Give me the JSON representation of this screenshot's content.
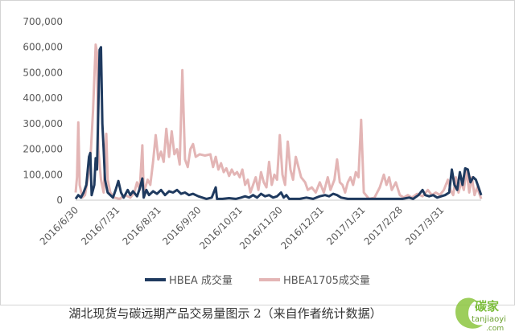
{
  "caption": "湖北现货与碳远期产品交易量图示 2（来自作者统计数据）",
  "watermark": {
    "text": "碳家",
    "domain": "tanjiaoyi",
    "tld": ".com"
  },
  "colors": {
    "hbea": "#1f3a5f",
    "hbea1705": "#e3b5b5",
    "axis": "#c8c8c8",
    "text": "#595959"
  },
  "chart_data": {
    "type": "line",
    "ylim": [
      0,
      700000
    ],
    "yticks": [
      "0",
      "100,000",
      "200,000",
      "300,000",
      "400,000",
      "500,000",
      "600,000",
      "700,000"
    ],
    "x_range": [
      "2016-06-30",
      "2017-04-30"
    ],
    "xticks": [
      "2016/6/30",
      "2016/7/31",
      "2016/8/31",
      "2016/9/30",
      "2016/10/31",
      "2016/11/30",
      "2016/12/31",
      "2017/1/31",
      "2017/2/28",
      "2017/3/31"
    ],
    "legend_position": "bottom",
    "grid": false,
    "series": [
      {
        "name": "HBEA 成交量",
        "color": "#1f3a5f",
        "points": [
          [
            "2016-06-30",
            5000
          ],
          [
            "2016-07-02",
            20000
          ],
          [
            "2016-07-04",
            10000
          ],
          [
            "2016-07-06",
            30000
          ],
          [
            "2016-07-08",
            60000
          ],
          [
            "2016-07-10",
            170000
          ],
          [
            "2016-07-11",
            185000
          ],
          [
            "2016-07-12",
            20000
          ],
          [
            "2016-07-14",
            60000
          ],
          [
            "2016-07-15",
            165000
          ],
          [
            "2016-07-16",
            120000
          ],
          [
            "2016-07-18",
            590000
          ],
          [
            "2016-07-19",
            600000
          ],
          [
            "2016-07-20",
            300000
          ],
          [
            "2016-07-21",
            200000
          ],
          [
            "2016-07-22",
            80000
          ],
          [
            "2016-07-24",
            30000
          ],
          [
            "2016-07-26",
            20000
          ],
          [
            "2016-07-28",
            10000
          ],
          [
            "2016-07-30",
            40000
          ],
          [
            "2016-08-01",
            75000
          ],
          [
            "2016-08-03",
            30000
          ],
          [
            "2016-08-05",
            10000
          ],
          [
            "2016-08-08",
            40000
          ],
          [
            "2016-08-10",
            20000
          ],
          [
            "2016-08-12",
            35000
          ],
          [
            "2016-08-15",
            15000
          ],
          [
            "2016-08-17",
            45000
          ],
          [
            "2016-08-19",
            85000
          ],
          [
            "2016-08-20",
            10000
          ],
          [
            "2016-08-22",
            40000
          ],
          [
            "2016-08-24",
            20000
          ],
          [
            "2016-08-27",
            35000
          ],
          [
            "2016-08-30",
            25000
          ],
          [
            "2016-09-02",
            40000
          ],
          [
            "2016-09-05",
            20000
          ],
          [
            "2016-09-08",
            35000
          ],
          [
            "2016-09-11",
            30000
          ],
          [
            "2016-09-14",
            40000
          ],
          [
            "2016-09-17",
            25000
          ],
          [
            "2016-09-20",
            30000
          ],
          [
            "2016-09-23",
            20000
          ],
          [
            "2016-09-26",
            25000
          ],
          [
            "2016-09-30",
            15000
          ],
          [
            "2016-10-03",
            10000
          ],
          [
            "2016-10-06",
            5000
          ],
          [
            "2016-10-10",
            10000
          ],
          [
            "2016-10-13",
            50000
          ],
          [
            "2016-10-14",
            5000
          ],
          [
            "2016-10-18",
            5000
          ],
          [
            "2016-10-23",
            8000
          ],
          [
            "2016-10-28",
            5000
          ],
          [
            "2016-11-01",
            10000
          ],
          [
            "2016-11-04",
            15000
          ],
          [
            "2016-11-07",
            10000
          ],
          [
            "2016-11-10",
            20000
          ],
          [
            "2016-11-13",
            10000
          ],
          [
            "2016-11-16",
            25000
          ],
          [
            "2016-11-19",
            15000
          ],
          [
            "2016-11-22",
            20000
          ],
          [
            "2016-11-25",
            10000
          ],
          [
            "2016-11-28",
            15000
          ],
          [
            "2016-12-01",
            30000
          ],
          [
            "2016-12-03",
            10000
          ],
          [
            "2016-12-05",
            20000
          ],
          [
            "2016-12-07",
            5000
          ],
          [
            "2016-12-15",
            5000
          ],
          [
            "2016-12-20",
            10000
          ],
          [
            "2016-12-25",
            5000
          ],
          [
            "2016-12-30",
            15000
          ],
          [
            "2017-01-03",
            20000
          ],
          [
            "2017-01-06",
            15000
          ],
          [
            "2017-01-09",
            25000
          ],
          [
            "2017-01-12",
            20000
          ],
          [
            "2017-01-15",
            10000
          ],
          [
            "2017-01-20",
            5000
          ],
          [
            "2017-01-25",
            5000
          ],
          [
            "2017-01-31",
            5000
          ],
          [
            "2017-02-05",
            5000
          ],
          [
            "2017-02-10",
            5000
          ],
          [
            "2017-02-15",
            5000
          ],
          [
            "2017-02-20",
            5000
          ],
          [
            "2017-02-25",
            5000
          ],
          [
            "2017-03-02",
            5000
          ],
          [
            "2017-03-07",
            10000
          ],
          [
            "2017-03-10",
            5000
          ],
          [
            "2017-03-14",
            20000
          ],
          [
            "2017-03-17",
            40000
          ],
          [
            "2017-03-19",
            20000
          ],
          [
            "2017-03-22",
            15000
          ],
          [
            "2017-03-25",
            20000
          ],
          [
            "2017-03-28",
            10000
          ],
          [
            "2017-03-31",
            15000
          ],
          [
            "2017-04-03",
            20000
          ],
          [
            "2017-04-06",
            30000
          ],
          [
            "2017-04-08",
            120000
          ],
          [
            "2017-04-10",
            60000
          ],
          [
            "2017-04-12",
            40000
          ],
          [
            "2017-04-14",
            110000
          ],
          [
            "2017-04-16",
            60000
          ],
          [
            "2017-04-18",
            125000
          ],
          [
            "2017-04-20",
            120000
          ],
          [
            "2017-04-22",
            70000
          ],
          [
            "2017-04-24",
            90000
          ],
          [
            "2017-04-26",
            80000
          ],
          [
            "2017-04-28",
            50000
          ],
          [
            "2017-04-30",
            20000
          ]
        ]
      },
      {
        "name": "HBEA1705成交量",
        "color": "#e3b5b5",
        "points": [
          [
            "2016-06-30",
            30000
          ],
          [
            "2016-07-01",
            90000
          ],
          [
            "2016-07-02",
            305000
          ],
          [
            "2016-07-03",
            60000
          ],
          [
            "2016-07-05",
            10000
          ],
          [
            "2016-07-07",
            20000
          ],
          [
            "2016-07-09",
            80000
          ],
          [
            "2016-07-11",
            150000
          ],
          [
            "2016-07-13",
            350000
          ],
          [
            "2016-07-15",
            610000
          ],
          [
            "2016-07-16",
            580000
          ],
          [
            "2016-07-17",
            200000
          ],
          [
            "2016-07-19",
            80000
          ],
          [
            "2016-07-21",
            30000
          ],
          [
            "2016-07-23",
            260000
          ],
          [
            "2016-07-24",
            80000
          ],
          [
            "2016-07-26",
            30000
          ],
          [
            "2016-07-29",
            10000
          ],
          [
            "2016-08-02",
            5000
          ],
          [
            "2016-08-06",
            20000
          ],
          [
            "2016-08-10",
            10000
          ],
          [
            "2016-08-13",
            30000
          ],
          [
            "2016-08-15",
            70000
          ],
          [
            "2016-08-17",
            40000
          ],
          [
            "2016-08-19",
            215000
          ],
          [
            "2016-08-20",
            30000
          ],
          [
            "2016-08-23",
            80000
          ],
          [
            "2016-08-25",
            60000
          ],
          [
            "2016-08-27",
            150000
          ],
          [
            "2016-08-29",
            255000
          ],
          [
            "2016-08-31",
            160000
          ],
          [
            "2016-09-02",
            190000
          ],
          [
            "2016-09-04",
            150000
          ],
          [
            "2016-09-06",
            280000
          ],
          [
            "2016-09-08",
            170000
          ],
          [
            "2016-09-10",
            270000
          ],
          [
            "2016-09-12",
            180000
          ],
          [
            "2016-09-14",
            200000
          ],
          [
            "2016-09-16",
            140000
          ],
          [
            "2016-09-18",
            510000
          ],
          [
            "2016-09-20",
            160000
          ],
          [
            "2016-09-22",
            130000
          ],
          [
            "2016-09-24",
            200000
          ],
          [
            "2016-09-26",
            220000
          ],
          [
            "2016-09-28",
            170000
          ],
          [
            "2016-10-01",
            180000
          ],
          [
            "2016-10-05",
            175000
          ],
          [
            "2016-10-09",
            180000
          ],
          [
            "2016-10-11",
            130000
          ],
          [
            "2016-10-13",
            170000
          ],
          [
            "2016-10-15",
            120000
          ],
          [
            "2016-10-17",
            145000
          ],
          [
            "2016-10-19",
            110000
          ],
          [
            "2016-10-21",
            125000
          ],
          [
            "2016-10-23",
            95000
          ],
          [
            "2016-10-25",
            120000
          ],
          [
            "2016-10-27",
            100000
          ],
          [
            "2016-10-29",
            110000
          ],
          [
            "2016-10-31",
            90000
          ],
          [
            "2016-11-02",
            120000
          ],
          [
            "2016-11-04",
            60000
          ],
          [
            "2016-11-06",
            80000
          ],
          [
            "2016-11-08",
            30000
          ],
          [
            "2016-11-10",
            60000
          ],
          [
            "2016-11-12",
            90000
          ],
          [
            "2016-11-14",
            40000
          ],
          [
            "2016-11-16",
            110000
          ],
          [
            "2016-11-18",
            70000
          ],
          [
            "2016-11-20",
            50000
          ],
          [
            "2016-11-22",
            150000
          ],
          [
            "2016-11-24",
            60000
          ],
          [
            "2016-11-26",
            100000
          ],
          [
            "2016-11-28",
            80000
          ],
          [
            "2016-11-30",
            255000
          ],
          [
            "2016-12-02",
            100000
          ],
          [
            "2016-12-04",
            60000
          ],
          [
            "2016-12-06",
            230000
          ],
          [
            "2016-12-08",
            120000
          ],
          [
            "2016-12-10",
            80000
          ],
          [
            "2016-12-12",
            170000
          ],
          [
            "2016-12-14",
            130000
          ],
          [
            "2016-12-16",
            90000
          ],
          [
            "2016-12-19",
            70000
          ],
          [
            "2016-12-21",
            40000
          ],
          [
            "2016-12-24",
            50000
          ],
          [
            "2016-12-27",
            30000
          ],
          [
            "2016-12-30",
            70000
          ],
          [
            "2017-01-02",
            30000
          ],
          [
            "2017-01-05",
            90000
          ],
          [
            "2017-01-07",
            40000
          ],
          [
            "2017-01-10",
            80000
          ],
          [
            "2017-01-12",
            160000
          ],
          [
            "2017-01-14",
            70000
          ],
          [
            "2017-01-16",
            60000
          ],
          [
            "2017-01-18",
            30000
          ],
          [
            "2017-01-20",
            70000
          ],
          [
            "2017-01-22",
            90000
          ],
          [
            "2017-01-24",
            60000
          ],
          [
            "2017-01-26",
            110000
          ],
          [
            "2017-01-28",
            90000
          ],
          [
            "2017-01-30",
            315000
          ],
          [
            "2017-02-01",
            30000
          ],
          [
            "2017-02-05",
            5000
          ],
          [
            "2017-02-09",
            10000
          ],
          [
            "2017-02-13",
            50000
          ],
          [
            "2017-02-16",
            100000
          ],
          [
            "2017-02-18",
            60000
          ],
          [
            "2017-02-20",
            90000
          ],
          [
            "2017-02-22",
            40000
          ],
          [
            "2017-02-25",
            70000
          ],
          [
            "2017-02-28",
            20000
          ],
          [
            "2017-03-03",
            10000
          ],
          [
            "2017-03-06",
            20000
          ],
          [
            "2017-03-09",
            10000
          ],
          [
            "2017-03-13",
            25000
          ],
          [
            "2017-03-17",
            15000
          ],
          [
            "2017-03-21",
            40000
          ],
          [
            "2017-03-24",
            20000
          ],
          [
            "2017-03-27",
            30000
          ],
          [
            "2017-03-30",
            20000
          ],
          [
            "2017-04-02",
            40000
          ],
          [
            "2017-04-05",
            80000
          ],
          [
            "2017-04-07",
            40000
          ],
          [
            "2017-04-09",
            20000
          ],
          [
            "2017-04-11",
            90000
          ],
          [
            "2017-04-13",
            30000
          ],
          [
            "2017-04-15",
            70000
          ],
          [
            "2017-04-17",
            40000
          ],
          [
            "2017-04-19",
            120000
          ],
          [
            "2017-04-21",
            30000
          ],
          [
            "2017-04-23",
            90000
          ],
          [
            "2017-04-25",
            20000
          ],
          [
            "2017-04-27",
            50000
          ],
          [
            "2017-04-30",
            5000
          ]
        ]
      }
    ]
  }
}
